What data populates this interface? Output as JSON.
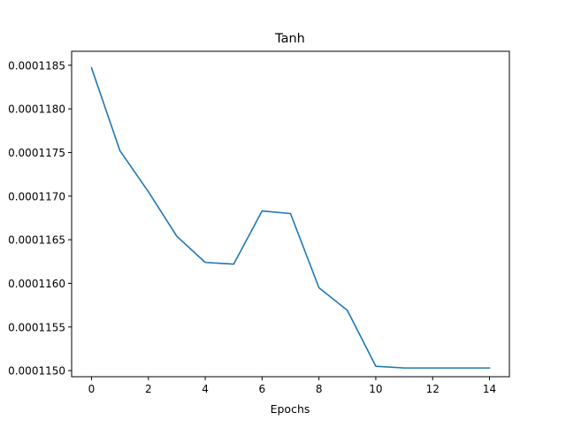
{
  "chart_data": {
    "type": "line",
    "title": "Tanh",
    "xlabel": "Epochs",
    "ylabel": "",
    "xlim": [
      -0.7,
      14.7
    ],
    "ylim": [
      0.00011493,
      0.00011866
    ],
    "x_ticks": [
      0,
      2,
      4,
      6,
      8,
      10,
      12,
      14
    ],
    "x_tick_labels": [
      "0",
      "2",
      "4",
      "6",
      "8",
      "10",
      "12",
      "14"
    ],
    "y_ticks": [
      0.000115,
      0.0001155,
      0.000116,
      0.0001165,
      0.000117,
      0.0001175,
      0.000118,
      0.0001185
    ],
    "y_tick_labels": [
      "0.0001150",
      "0.0001155",
      "0.0001160",
      "0.0001165",
      "0.0001170",
      "0.0001175",
      "0.0001180",
      "0.0001185"
    ],
    "grid": false,
    "series": [
      {
        "color": "#1f77b4",
        "x": [
          0,
          1,
          2,
          3,
          4,
          5,
          6,
          7,
          8,
          9,
          10,
          11,
          12,
          13,
          14
        ],
        "values": [
          0.00011847,
          0.00011752,
          0.00011705,
          0.00011654,
          0.00011624,
          0.00011622,
          0.00011683,
          0.0001168,
          0.00011595,
          0.00011569,
          0.00011505,
          0.00011503,
          0.00011503,
          0.00011503,
          0.00011503
        ]
      }
    ]
  }
}
